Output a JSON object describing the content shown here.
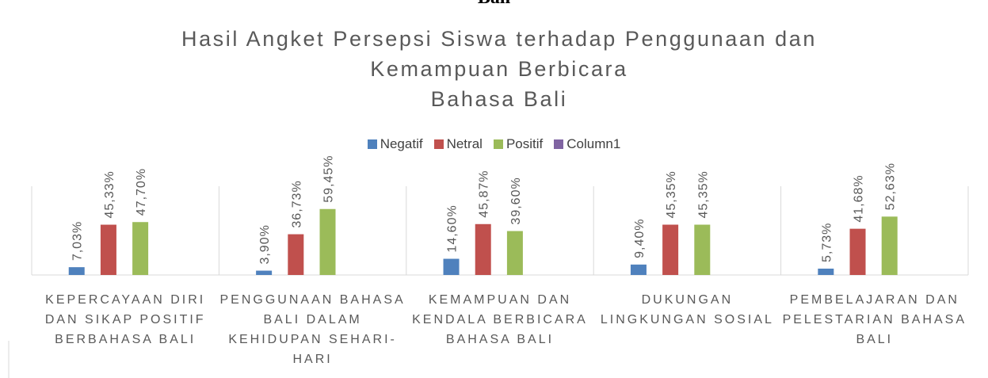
{
  "document_heading": "Bali",
  "chart_data": {
    "type": "bar",
    "title": "Hasil Angket Persepsi Siswa terhadap Penggunaan dan Kemampuan Berbicara\nBahasa Bali",
    "categories": [
      "KEPERCAYAAN DIRI DAN SIKAP POSITIF BERBAHASA BALI",
      "PENGGUNAAN BAHASA BALI DALAM KEHIDUPAN SEHARI-HARI",
      "KEMAMPUAN DAN KENDALA BERBICARA BAHASA BALI",
      "DUKUNGAN LINGKUNGAN SOSIAL",
      "PEMBELAJARAN DAN PELESTARIAN BAHASA BALI"
    ],
    "series": [
      {
        "name": "Negatif",
        "color": "#4f81bd",
        "values": [
          7.03,
          3.9,
          14.6,
          9.4,
          5.73
        ],
        "value_labels": [
          "7,03%",
          "3,90%",
          "14,60%",
          "9,40%",
          "5,73%"
        ]
      },
      {
        "name": "Netral",
        "color": "#c0504d",
        "values": [
          45.33,
          36.73,
          45.87,
          45.35,
          41.68
        ],
        "value_labels": [
          "45,33%",
          "36,73%",
          "45,87%",
          "45,35%",
          "41,68%"
        ]
      },
      {
        "name": "Positif",
        "color": "#9bbb59",
        "values": [
          47.7,
          59.45,
          39.6,
          45.35,
          52.63
        ],
        "value_labels": [
          "47,70%",
          "59,45%",
          "39,60%",
          "45,35%",
          "52,63%"
        ]
      },
      {
        "name": "Column1",
        "color": "#8064a2",
        "values": [
          null,
          null,
          null,
          null,
          null
        ]
      }
    ],
    "ylim": [
      0,
      80
    ],
    "legend": "top"
  }
}
